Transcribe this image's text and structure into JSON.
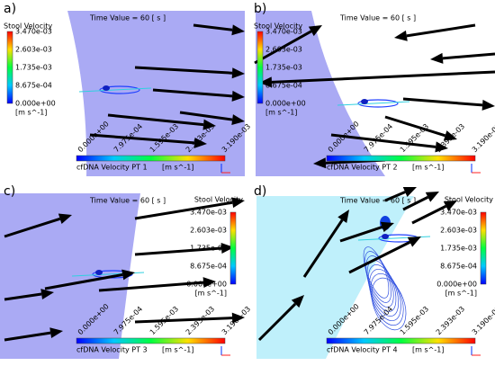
{
  "panels": [
    {
      "label": "a)",
      "time": "Time Value = 60 [ s ]",
      "stool_title": "Stool Velocity",
      "stool_ticks": [
        "3.470e-03",
        "2.603e-03",
        "1.735e-03",
        "8.675e-04",
        "0.000e+00"
      ],
      "stool_unit": "[m s^-1]",
      "cfdna_title": "cfDNA Velocity PT 1",
      "cfdna_unit": "[m s^-1]",
      "cfdna_ticks": [
        "0.000e+00",
        "7.975e-04",
        "1.595e-03",
        "2.393e-03",
        "3.190e-03"
      ]
    },
    {
      "label": "b)",
      "time": "Time Value = 60 [ s ]",
      "stool_title": "Stool Velocity",
      "stool_ticks": [
        "3.470e-03",
        "2.603e-03",
        "1.735e-03",
        "8.675e-04",
        "0.000e+00"
      ],
      "stool_unit": "[m s^-1]",
      "cfdna_title": "cfDNA Velocity PT 2",
      "cfdna_unit": "[m s^-1]",
      "cfdna_ticks": [
        "0.000e+00",
        "7.975e-04",
        "1.595e-03",
        "2.393e-03",
        "3.190e-03"
      ]
    },
    {
      "label": "c)",
      "time": "Time Value = 60 [ s ]",
      "stool_title": "Stool Velocity",
      "stool_ticks": [
        "3.470e-03",
        "2.603e-03",
        "1.735e-03",
        "8.675e-04",
        "0.000e+00"
      ],
      "stool_unit": "[m s^-1]",
      "cfdna_title": "cfDNA Velocity PT 3",
      "cfdna_unit": "[m s^-1]",
      "cfdna_ticks": [
        "0.000e+00",
        "7.975e-04",
        "1.595e-03",
        "2.393e-03",
        "3.190e-03"
      ]
    },
    {
      "label": "d)",
      "time": "Time Value = 60 [ s ]",
      "stool_title": "Stool Velocity",
      "stool_ticks": [
        "3.470e-03",
        "2.603e-03",
        "1.735e-03",
        "8.675e-04",
        "0.000e+00"
      ],
      "stool_unit": "[m s^-1]",
      "cfdna_title": "cfDNA Velocity PT 4",
      "cfdna_unit": "[m s^-1]",
      "cfdna_ticks": [
        "0.000e+00",
        "7.975e-04",
        "1.595e-03",
        "2.393e-03",
        "3.190e-03"
      ]
    }
  ]
}
